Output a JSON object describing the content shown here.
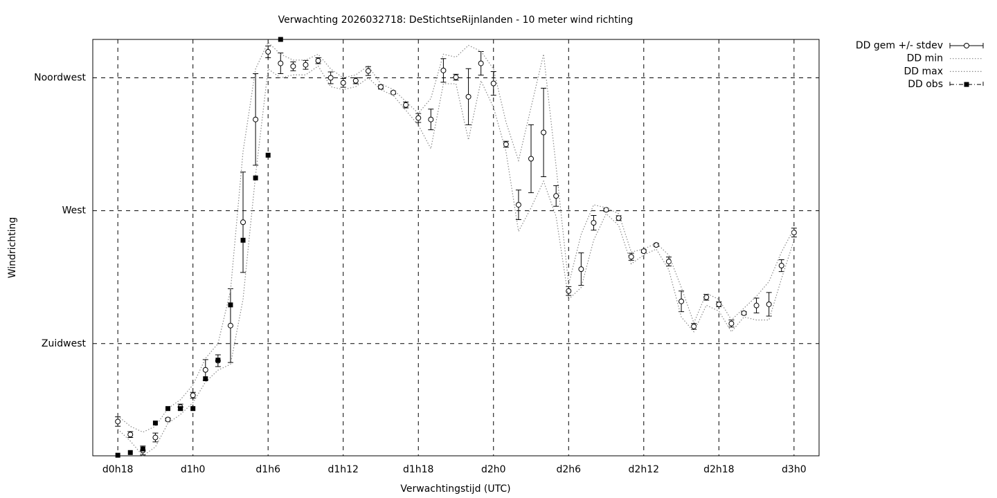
{
  "chart_data": {
    "type": "errorbar-line",
    "title": "Verwachting 2026032718: DeStichtseRijnlanden - 10 meter wind richting",
    "xlabel": "Verwachtingstijd (UTC)",
    "ylabel": "Windrichting",
    "x": [
      18,
      19,
      20,
      21,
      22,
      23,
      24,
      25,
      26,
      27,
      28,
      29,
      30,
      31,
      32,
      33,
      34,
      35,
      36,
      37,
      38,
      39,
      40,
      41,
      42,
      43,
      44,
      45,
      46,
      47,
      48,
      49,
      50,
      51,
      52,
      53,
      54,
      55,
      56,
      57,
      58,
      59,
      60,
      61,
      62,
      63,
      64,
      65,
      66,
      67,
      68,
      69,
      70,
      71,
      72
    ],
    "xlim": [
      16,
      74
    ],
    "xticks": [
      {
        "value": 18,
        "label": "d0h18"
      },
      {
        "value": 24,
        "label": "d1h0"
      },
      {
        "value": 30,
        "label": "d1h6"
      },
      {
        "value": 36,
        "label": "d1h12"
      },
      {
        "value": 42,
        "label": "d1h18"
      },
      {
        "value": 48,
        "label": "d2h0"
      },
      {
        "value": 54,
        "label": "d2h6"
      },
      {
        "value": 60,
        "label": "d2h12"
      },
      {
        "value": 66,
        "label": "d2h18"
      },
      {
        "value": 72,
        "label": "d3h0"
      }
    ],
    "ylim": [
      187,
      328
    ],
    "yticks": [
      {
        "value": 225,
        "label": "Zuidwest"
      },
      {
        "value": 270,
        "label": "West"
      },
      {
        "value": 315,
        "label": "Noordwest"
      }
    ],
    "grid": true,
    "legend": "outside-top-right",
    "series": [
      {
        "name": "DD gem +/- stdev",
        "style": "errorbars",
        "color": "#000000",
        "values": [
          198.6,
          194.2,
          188.8,
          193.2,
          199.3,
          203.5,
          207.5,
          216.1,
          219.2,
          231.1,
          266.1,
          300.9,
          323.8,
          319.9,
          318.9,
          319.4,
          320.8,
          315,
          313.3,
          314,
          317.3,
          311.9,
          310,
          305.8,
          301.4,
          300.9,
          317.5,
          315.2,
          308.6,
          319.9,
          313.1,
          292.5,
          272,
          287.6,
          296.5,
          275,
          242.8,
          250.2,
          265.9,
          270.3,
          267.5,
          254.4,
          256.3,
          258.4,
          252.8,
          239.3,
          230.8,
          240.7,
          238.3,
          231.8,
          235.3,
          237.9,
          238.3,
          251.4,
          262.6
        ],
        "stdev": [
          1.6,
          1,
          1.5,
          1.5,
          0.5,
          1,
          1,
          3.5,
          2,
          12.5,
          17,
          15.5,
          2,
          3.5,
          1.5,
          1.5,
          1,
          2,
          1.5,
          1,
          1.5,
          0.7,
          0.5,
          1,
          1.5,
          3.5,
          4,
          1,
          9.5,
          4,
          4,
          1,
          5,
          11.5,
          15,
          3.5,
          1.5,
          5.5,
          2.5,
          0.5,
          0.8,
          1.2,
          0.5,
          0.5,
          1.5,
          3.5,
          1,
          1,
          0.8,
          1.2,
          0.5,
          2.5,
          4,
          2,
          1.5
        ]
      },
      {
        "name": "DD min",
        "style": "dotted",
        "color": "#888888",
        "values": [
          196,
          192,
          187,
          190,
          198,
          201,
          205,
          212,
          216,
          218,
          240,
          282,
          318,
          315,
          316,
          316,
          319,
          312,
          311,
          312,
          315,
          311,
          309,
          304,
          299,
          291,
          313,
          313,
          294,
          314,
          305,
          290,
          263,
          271,
          280,
          268,
          240,
          244,
          260,
          269,
          265,
          252,
          255,
          257,
          250,
          234,
          229,
          238,
          236,
          229,
          234,
          233,
          233,
          247,
          260
        ]
      },
      {
        "name": "DD max",
        "style": "dotted",
        "color": "#888888",
        "values": [
          200.5,
          197,
          195,
          197,
          203,
          206,
          211,
          220,
          225,
          243,
          290,
          318,
          327,
          323,
          321,
          321,
          323,
          318,
          315,
          316,
          319,
          313,
          311,
          307,
          303,
          308,
          323,
          322,
          326,
          324,
          318,
          300,
          287,
          305,
          323,
          285,
          245,
          262,
          272,
          271,
          269,
          256,
          257,
          259,
          255,
          244,
          232,
          242,
          240,
          233,
          237,
          241,
          246,
          256,
          264
        ]
      },
      {
        "name": "DD obs",
        "style": "squares",
        "color": "#000000",
        "values": [
          187.2,
          188.1,
          189.3,
          198.1,
          203,
          203,
          203,
          213.1,
          219.4,
          238.1,
          260,
          281.1,
          288.8,
          328,
          null,
          null,
          null,
          null,
          null,
          null,
          null,
          null,
          null,
          null,
          null,
          null,
          null,
          null,
          null,
          null,
          null,
          null,
          null,
          null,
          null,
          null,
          null,
          null,
          null,
          null,
          null,
          null,
          null,
          null,
          null,
          null,
          null,
          null,
          null,
          null,
          null,
          null,
          null,
          null,
          null
        ]
      }
    ]
  }
}
